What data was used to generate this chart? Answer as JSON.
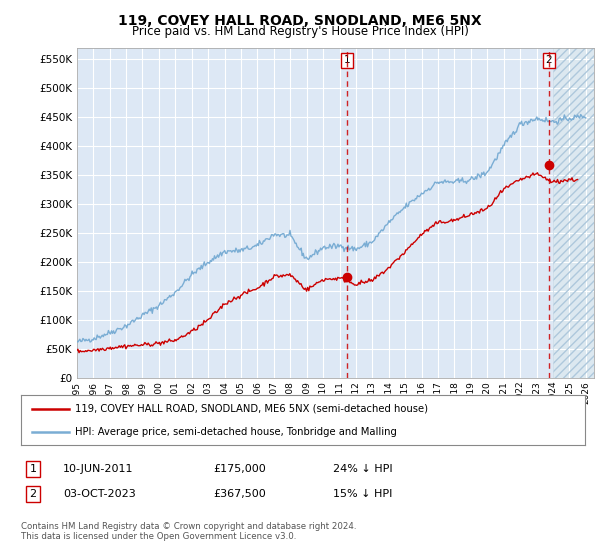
{
  "title": "119, COVEY HALL ROAD, SNODLAND, ME6 5NX",
  "subtitle": "Price paid vs. HM Land Registry's House Price Index (HPI)",
  "ylabel_ticks": [
    "£0",
    "£50K",
    "£100K",
    "£150K",
    "£200K",
    "£250K",
    "£300K",
    "£350K",
    "£400K",
    "£450K",
    "£500K",
    "£550K"
  ],
  "ytick_vals": [
    0,
    50000,
    100000,
    150000,
    200000,
    250000,
    300000,
    350000,
    400000,
    450000,
    500000,
    550000
  ],
  "ylim": [
    0,
    570000
  ],
  "xlim_start": 1995.0,
  "xlim_end": 2026.5,
  "hpi_color": "#7aadd4",
  "price_color": "#cc0000",
  "vline_color": "#cc0000",
  "hatch_color": "#c8d8e8",
  "hatch_start": 2024.0,
  "marker1_year": 2011.44,
  "marker2_year": 2023.75,
  "marker1_price": 175000,
  "marker2_price": 367500,
  "legend_line1": "119, COVEY HALL ROAD, SNODLAND, ME6 5NX (semi-detached house)",
  "legend_line2": "HPI: Average price, semi-detached house, Tonbridge and Malling",
  "table_row1": [
    "1",
    "10-JUN-2011",
    "£175,000",
    "24% ↓ HPI"
  ],
  "table_row2": [
    "2",
    "03-OCT-2023",
    "£367,500",
    "15% ↓ HPI"
  ],
  "footer": "Contains HM Land Registry data © Crown copyright and database right 2024.\nThis data is licensed under the Open Government Licence v3.0.",
  "background_color": "#ffffff",
  "plot_bg_color": "#dde8f5",
  "grid_color": "#ffffff"
}
